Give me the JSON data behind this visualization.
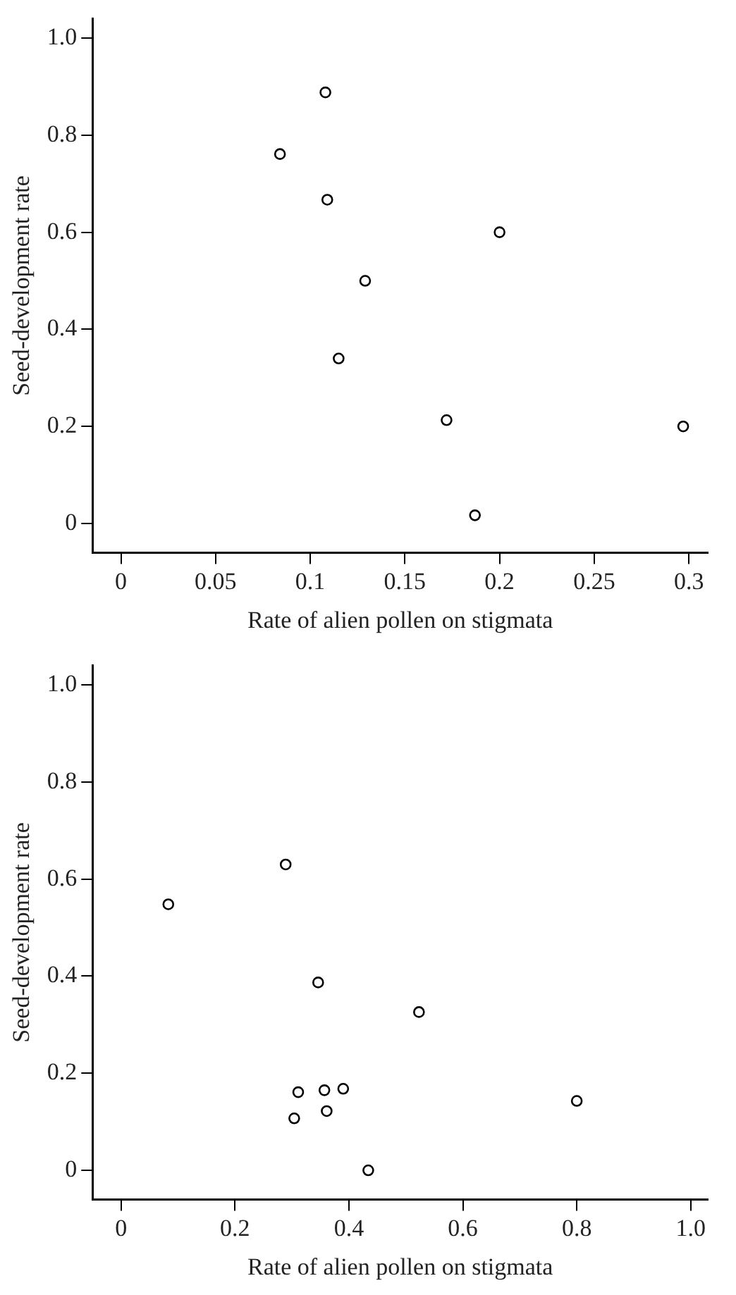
{
  "chart_data": [
    {
      "type": "scatter",
      "xlabel": "Rate of alien pollen on stigmata",
      "ylabel": "Seed-development rate",
      "xlim": [
        -0.015,
        0.31
      ],
      "ylim": [
        -0.06,
        1.04
      ],
      "xticks": [
        0,
        0.05,
        0.1,
        0.15,
        0.2,
        0.25,
        0.3
      ],
      "yticks": [
        0,
        {
          "value": 0.2,
          "label": "0.2"
        },
        {
          "value": 0.4,
          "label": "0.4"
        },
        {
          "value": 0.6,
          "label": "0.6"
        },
        {
          "value": 0.8,
          "label": "0.8"
        },
        {
          "value": 1,
          "label": "1.0"
        }
      ],
      "grid": false,
      "legend": false,
      "marker": "circle",
      "series": [
        {
          "color": "#000000",
          "x": [
            0.108,
            0.084,
            0.109,
            0.129,
            0.115,
            0.2,
            0.172,
            0.187,
            0.297
          ],
          "values": [
            0.888,
            0.761,
            0.667,
            0.5,
            0.34,
            0.6,
            0.213,
            0.017,
            0.2
          ]
        }
      ]
    },
    {
      "type": "scatter",
      "xlabel": "Rate of alien pollen on stigmata",
      "ylabel": "Seed-development rate",
      "xlim": [
        -0.05,
        1.03
      ],
      "ylim": [
        -0.06,
        1.04
      ],
      "xticks": [
        0,
        {
          "value": 0.2,
          "label": "0.2"
        },
        {
          "value": 0.4,
          "label": "0.4"
        },
        {
          "value": 0.6,
          "label": "0.6"
        },
        {
          "value": 0.8,
          "label": "0.8"
        },
        {
          "value": 1,
          "label": "1.0"
        }
      ],
      "yticks": [
        0,
        {
          "value": 0.2,
          "label": "0.2"
        },
        {
          "value": 0.4,
          "label": "0.4"
        },
        {
          "value": 0.6,
          "label": "0.6"
        },
        {
          "value": 0.8,
          "label": "0.8"
        },
        {
          "value": 1,
          "label": "1.0"
        }
      ],
      "grid": false,
      "legend": false,
      "marker": "circle",
      "series": [
        {
          "color": "#000000",
          "x": [
            0.083,
            0.289,
            0.346,
            0.523,
            0.311,
            0.357,
            0.39,
            0.304,
            0.361,
            0.434,
            0.8
          ],
          "values": [
            0.548,
            0.63,
            0.387,
            0.326,
            0.161,
            0.165,
            0.168,
            0.107,
            0.122,
            0,
            0.143
          ]
        }
      ]
    }
  ]
}
